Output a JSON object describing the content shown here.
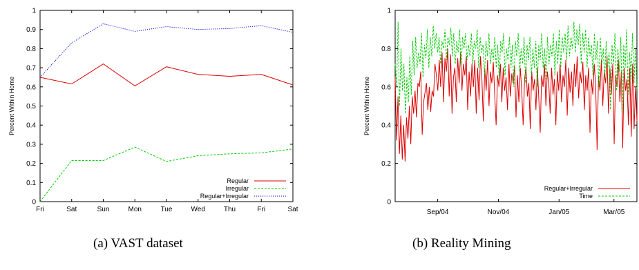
{
  "captions": {
    "a": "(a)  VAST dataset",
    "b": "(b)  Reality Mining"
  },
  "colors": {
    "red": "#dd0000",
    "green": "#00cc00",
    "blue": "#0000dd"
  },
  "chart_data": [
    {
      "type": "line",
      "title": "",
      "ylabel": "Percent Within Home",
      "xlabel": "",
      "categories": [
        "Fri",
        "Sat",
        "Sun",
        "Mon",
        "Tue",
        "Wed",
        "Thu",
        "Fri",
        "Sat"
      ],
      "ylim": [
        0,
        1
      ],
      "yticks": [
        "0",
        "0.1",
        "0.2",
        "0.3",
        "0.4",
        "0.5",
        "0.6",
        "0.7",
        "0.8",
        "0.9",
        "1"
      ],
      "legend_position": "bottom-right",
      "grid": false,
      "series": [
        {
          "name": "Regular",
          "color": "#dd0000",
          "dash": "solid",
          "values": [
            0.65,
            0.615,
            0.72,
            0.605,
            0.705,
            0.665,
            0.655,
            0.665,
            0.61
          ]
        },
        {
          "name": "Irregular",
          "color": "#00cc00",
          "dash": "dashed",
          "values": [
            0.0,
            0.215,
            0.215,
            0.285,
            0.21,
            0.24,
            0.25,
            0.255,
            0.275
          ]
        },
        {
          "name": "Regular+Irregular",
          "color": "#0000dd",
          "dash": "dotted",
          "values": [
            0.65,
            0.83,
            0.93,
            0.89,
            0.915,
            0.9,
            0.905,
            0.92,
            0.885
          ]
        }
      ]
    },
    {
      "type": "line",
      "title": "",
      "ylabel": "Percent Within Home",
      "xlabel": "",
      "xticks": [
        "Sep/04",
        "Nov/04",
        "Jan/05",
        "Mar/05"
      ],
      "yticks": [
        "0",
        "0.2",
        "0.4",
        "0.6",
        "0.8",
        "1"
      ],
      "ylim": [
        0,
        1
      ],
      "legend_position": "bottom-right",
      "grid": false,
      "series": [
        {
          "name": "Regular+Irregular",
          "color": "#dd0000",
          "dash": "solid",
          "values": [
            0.65,
            0.32,
            0.55,
            0.25,
            0.45,
            0.22,
            0.4,
            0.21,
            0.44,
            0.33,
            0.5,
            0.3,
            0.55,
            0.46,
            0.58,
            0.44,
            0.62,
            0.6,
            0.68,
            0.35,
            0.52,
            0.57,
            0.62,
            0.48,
            0.6,
            0.47,
            0.58,
            0.55,
            0.72,
            0.66,
            0.58,
            0.74,
            0.6,
            0.78,
            0.52,
            0.75,
            0.68,
            0.8,
            0.55,
            0.77,
            0.46,
            0.65,
            0.7,
            0.52,
            0.75,
            0.62,
            0.78,
            0.58,
            0.72,
            0.66,
            0.76,
            0.48,
            0.68,
            0.55,
            0.72,
            0.6,
            0.74,
            0.46,
            0.7,
            0.53,
            0.76,
            0.64,
            0.42,
            0.7,
            0.58,
            0.74,
            0.5,
            0.68,
            0.62,
            0.73,
            0.56,
            0.4,
            0.66,
            0.6,
            0.72,
            0.52,
            0.7,
            0.58,
            0.65,
            0.48,
            0.72,
            0.55,
            0.67,
            0.62,
            0.71,
            0.44,
            0.66,
            0.52,
            0.7,
            0.58,
            0.4,
            0.64,
            0.7,
            0.55,
            0.62,
            0.38,
            0.68,
            0.58,
            0.64,
            0.48,
            0.7,
            0.54,
            0.36,
            0.66,
            0.6,
            0.72,
            0.5,
            0.68,
            0.62,
            0.46,
            0.7,
            0.56,
            0.64,
            0.4,
            0.68,
            0.58,
            0.72,
            0.52,
            0.66,
            0.6,
            0.74,
            0.45,
            0.7,
            0.57,
            0.68,
            0.5,
            0.72,
            0.6,
            0.76,
            0.54,
            0.68,
            0.62,
            0.73,
            0.48,
            0.66,
            0.58,
            0.7,
            0.36,
            0.64,
            0.56,
            0.72,
            0.6,
            0.27,
            0.66,
            0.58,
            0.74,
            0.5,
            0.68,
            0.62,
            0.76,
            0.46,
            0.7,
            0.56,
            0.72,
            0.3,
            0.66,
            0.6,
            0.74,
            0.52,
            0.68,
            0.28,
            0.7,
            0.58,
            0.64,
            0.4,
            0.7,
            0.34,
            0.72,
            0.38,
            0.6,
            0.42
          ]
        },
        {
          "name": "Time",
          "color": "#00cc00",
          "dash": "dashed",
          "values": [
            0.72,
            0.6,
            0.94,
            0.5,
            0.8,
            0.58,
            0.72,
            0.46,
            0.65,
            0.52,
            0.76,
            0.56,
            0.84,
            0.66,
            0.86,
            0.7,
            0.78,
            0.72,
            0.88,
            0.65,
            0.82,
            0.75,
            0.9,
            0.7,
            0.86,
            0.76,
            0.92,
            0.8,
            0.88,
            0.78,
            0.86,
            0.72,
            0.84,
            0.8,
            0.9,
            0.74,
            0.86,
            0.82,
            0.91,
            0.76,
            0.88,
            0.72,
            0.84,
            0.78,
            0.9,
            0.7,
            0.86,
            0.8,
            0.88,
            0.74,
            0.82,
            0.76,
            0.88,
            0.72,
            0.84,
            0.8,
            0.9,
            0.7,
            0.86,
            0.78,
            0.82,
            0.66,
            0.84,
            0.76,
            0.88,
            0.72,
            0.8,
            0.74,
            0.86,
            0.7,
            0.82,
            0.64,
            0.84,
            0.78,
            0.88,
            0.66,
            0.8,
            0.74,
            0.86,
            0.7,
            0.82,
            0.6,
            0.84,
            0.76,
            0.88,
            0.68,
            0.8,
            0.72,
            0.86,
            0.62,
            0.82,
            0.74,
            0.86,
            0.66,
            0.8,
            0.7,
            0.84,
            0.6,
            0.82,
            0.74,
            0.88,
            0.7,
            0.8,
            0.64,
            0.86,
            0.72,
            0.82,
            0.76,
            0.88,
            0.66,
            0.84,
            0.72,
            0.9,
            0.7,
            0.86,
            0.78,
            0.88,
            0.74,
            0.92,
            0.76,
            0.86,
            0.8,
            0.94,
            0.78,
            0.9,
            0.82,
            0.93,
            0.72,
            0.88,
            0.78,
            0.9,
            0.7,
            0.86,
            0.76,
            0.82,
            0.66,
            0.88,
            0.74,
            0.84,
            0.6,
            0.86,
            0.72,
            0.8,
            0.64,
            0.84,
            0.7,
            0.78,
            0.48,
            0.82,
            0.72,
            0.88,
            0.58,
            0.8,
            0.68,
            0.86,
            0.46,
            0.82,
            0.7,
            0.9,
            0.56,
            0.78,
            0.64,
            0.88,
            0.62,
            0.8,
            0.58
          ]
        }
      ]
    }
  ]
}
